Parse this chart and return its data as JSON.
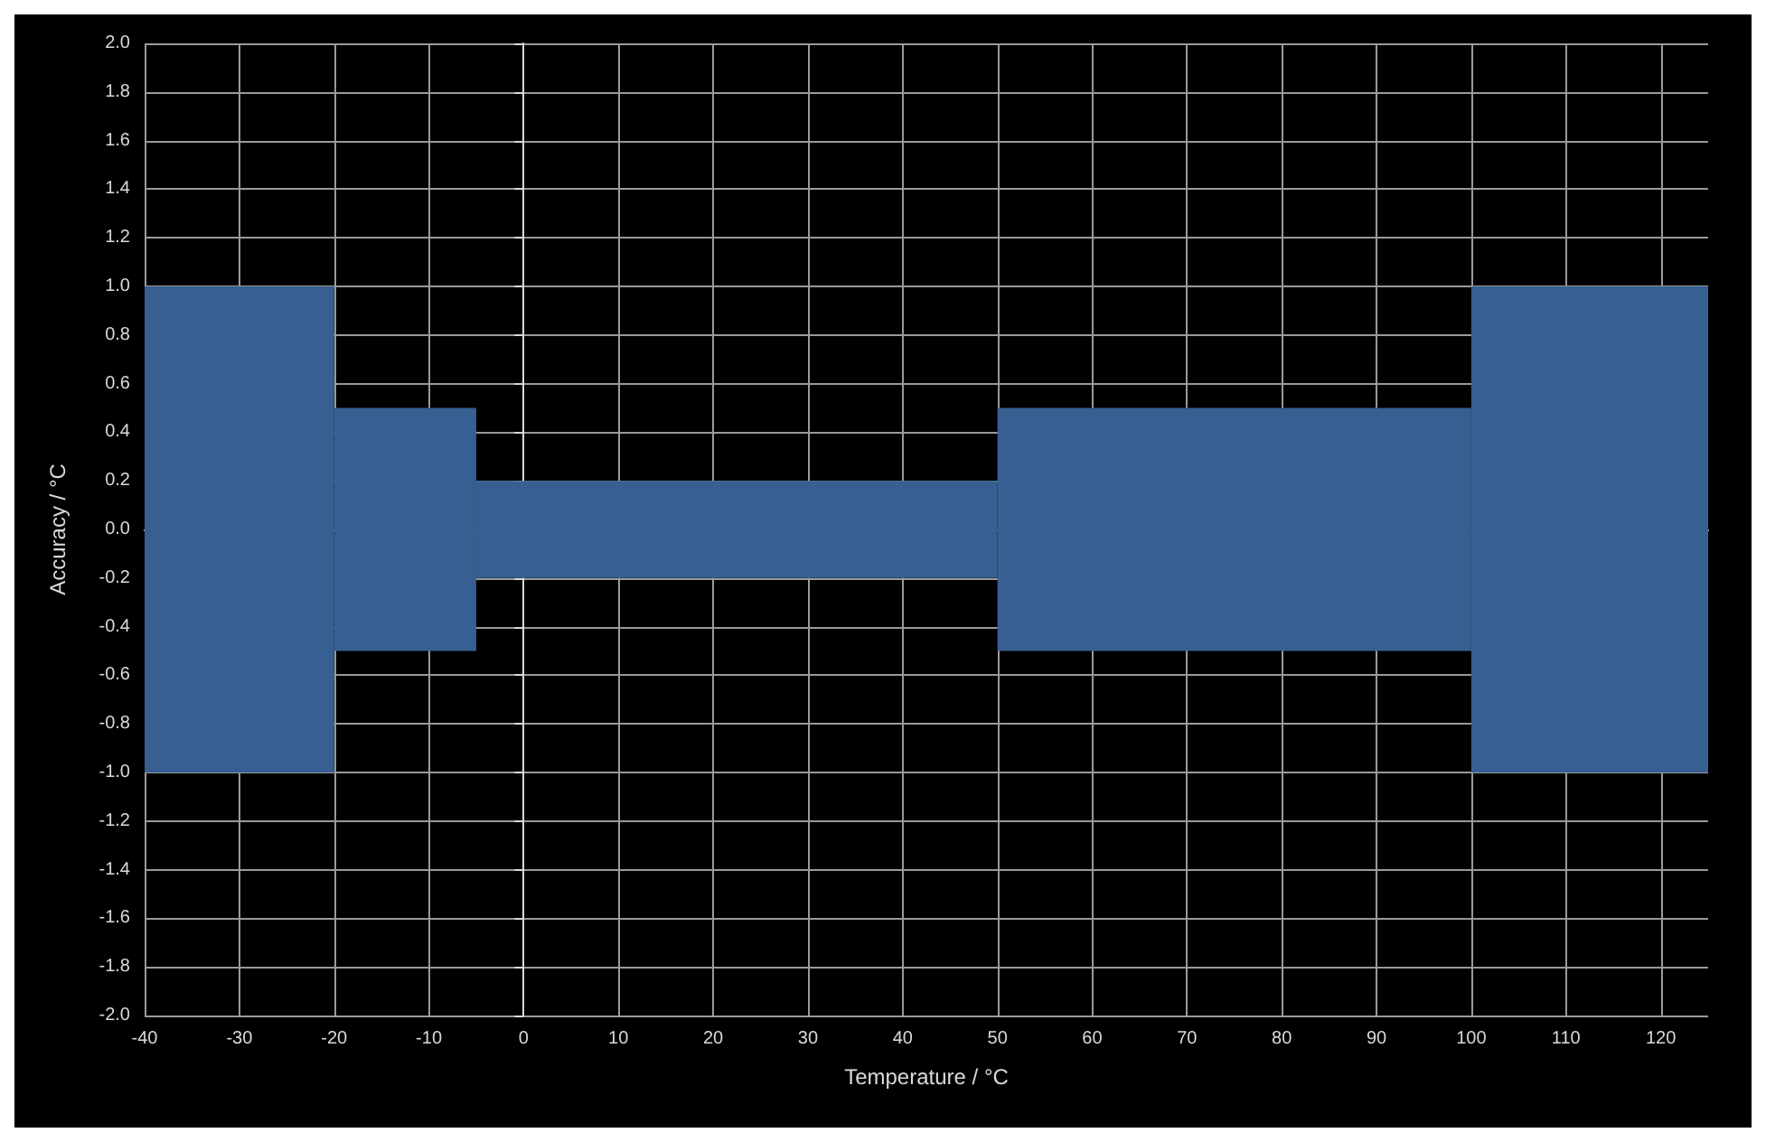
{
  "chart_data": {
    "type": "histogram",
    "xlabel": "Temperature / °C",
    "ylabel": "Accuracy / °C",
    "bins": [
      -40,
      -20,
      -5,
      50,
      100,
      125
    ],
    "values": [
      2,
      1,
      0.4,
      1,
      2
    ],
    "base": [
      -1,
      -0.5,
      -0.2,
      -0.5,
      -1
    ],
    "color": "#375f91",
    "xlim": [
      -40,
      125
    ],
    "xticks": [
      -40,
      -30,
      -20,
      -10,
      0,
      10,
      20,
      30,
      40,
      50,
      60,
      70,
      80,
      90,
      100,
      110,
      120
    ],
    "ylim": [
      -2,
      2
    ],
    "yticks": [
      {
        "value": -2,
        "label": "-2.0"
      },
      {
        "value": -1.8,
        "label": "-1.8"
      },
      {
        "value": -1.6,
        "label": "-1.6"
      },
      {
        "value": -1.4,
        "label": "-1.4"
      },
      {
        "value": -1.2,
        "label": "-1.2"
      },
      {
        "value": -1,
        "label": "-1.0"
      },
      {
        "value": -0.8,
        "label": "-0.8"
      },
      {
        "value": -0.6,
        "label": "-0.6"
      },
      {
        "value": -0.4,
        "label": "-0.4"
      },
      {
        "value": -0.2,
        "label": "-0.2"
      },
      {
        "value": 0,
        "label": "0.0"
      },
      {
        "value": 0.2,
        "label": "0.2"
      },
      {
        "value": 0.4,
        "label": "0.4"
      },
      {
        "value": 0.6,
        "label": "0.6"
      },
      {
        "value": 0.8,
        "label": "0.8"
      },
      {
        "value": 1,
        "label": "1.0"
      },
      {
        "value": 1.2,
        "label": "1.2"
      },
      {
        "value": 1.4,
        "label": "1.4"
      },
      {
        "value": 1.6,
        "label": "1.6"
      },
      {
        "value": 1.8,
        "label": "1.8"
      },
      {
        "value": 2,
        "label": "2.0"
      }
    ],
    "grid": true
  }
}
